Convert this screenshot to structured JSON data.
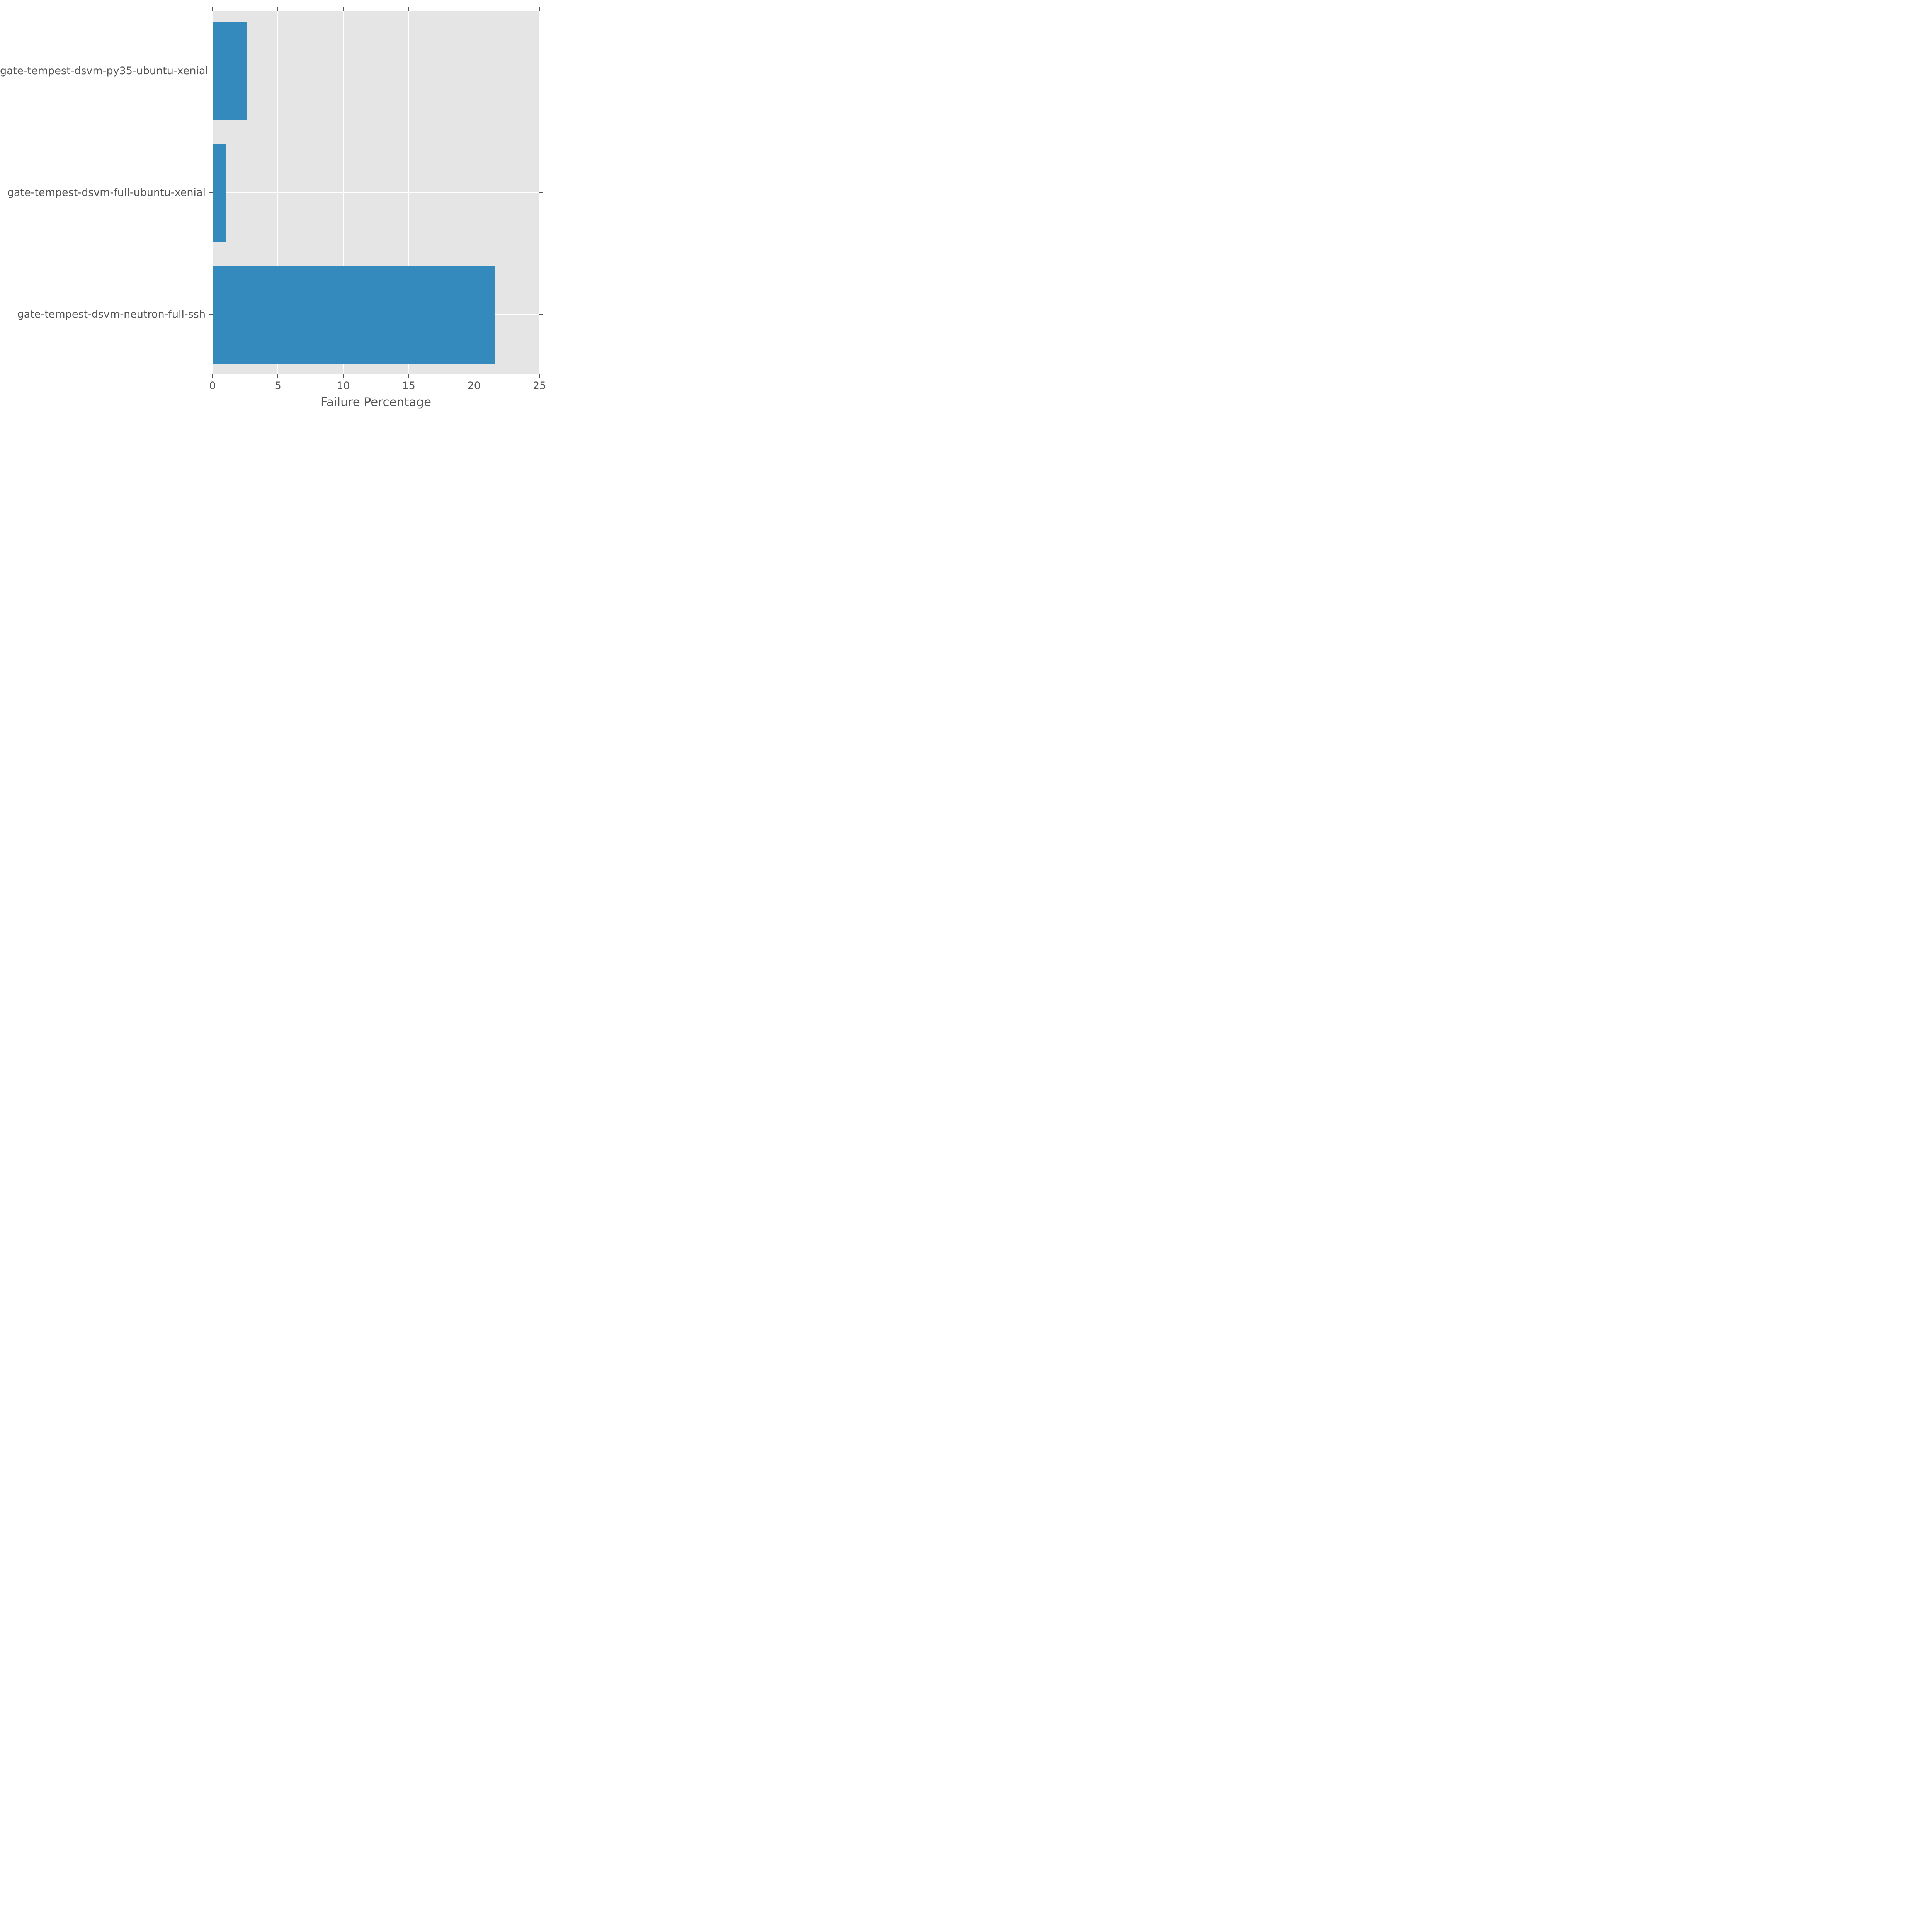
{
  "chart_data": {
    "type": "bar",
    "orientation": "horizontal",
    "title": "",
    "xlabel": "Failure Percentage",
    "ylabel": "",
    "categories": [
      "gate-tempest-dsvm-py35-ubuntu-xenial",
      "gate-tempest-dsvm-full-ubuntu-xenial",
      "gate-tempest-dsvm-neutron-full-ssh"
    ],
    "values": [
      2.6,
      1.0,
      21.6
    ],
    "xlim": [
      0,
      25
    ],
    "xticks": [
      0,
      5,
      10,
      15,
      20,
      25
    ],
    "grid": true,
    "legend": false,
    "style": {
      "bar_color": "#348ABD",
      "plot_background": "#E5E5E5",
      "grid_color": "#FFFFFF",
      "text_color": "#555555",
      "figure_background": "#FFFFFF"
    }
  }
}
